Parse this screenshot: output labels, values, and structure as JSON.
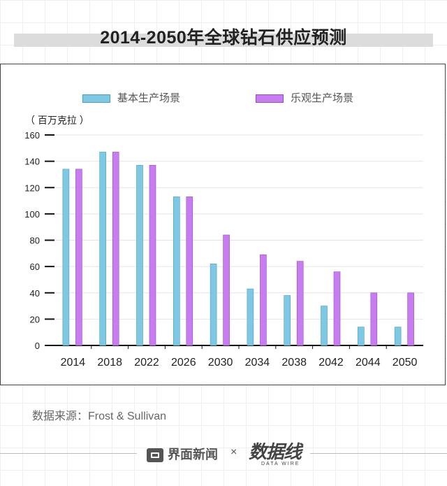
{
  "title": "2014-2050年全球钻石供应预测",
  "source": "数据来源：Frost & Sullivan",
  "footer": {
    "brand": "界面新闻",
    "separator": "×",
    "logo": "数据线",
    "logo_sub": "DATA WIRE"
  },
  "colors": {
    "series_basic": "#7ec8e3",
    "series_basic_edge": "#4aa0c0",
    "series_optimistic": "#c77df0",
    "series_optimistic_edge": "#9a4cc8"
  },
  "chart_data": {
    "type": "bar",
    "ylabel": "（ 百万克拉 ）",
    "ylim": [
      0,
      160
    ],
    "yticks": [
      "0",
      "20",
      "40",
      "60",
      "80",
      "100",
      "120",
      "140",
      "160"
    ],
    "grid": true,
    "legend_position": "top",
    "categories": [
      "2014",
      "2018",
      "2022",
      "2026",
      "2030",
      "2034",
      "2038",
      "2042",
      "2044",
      "2050"
    ],
    "series": [
      {
        "name": "基本生产场景",
        "values": [
          134,
          147,
          137,
          113,
          62,
          43,
          38,
          30,
          14,
          14
        ]
      },
      {
        "name": "乐观生产场景",
        "values": [
          134,
          147,
          137,
          113,
          84,
          69,
          64,
          56,
          40,
          40
        ]
      }
    ]
  }
}
